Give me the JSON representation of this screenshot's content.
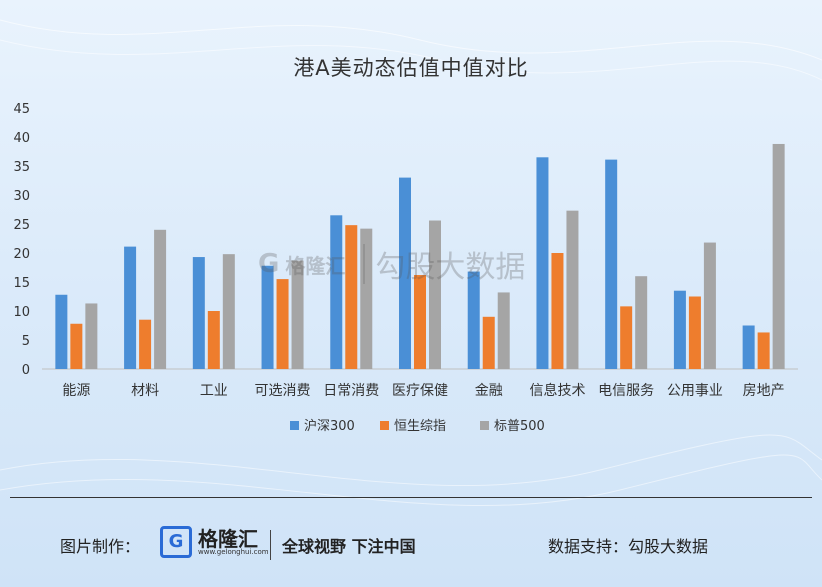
{
  "header": {
    "title": "港A美动态估值中值对比"
  },
  "watermark": {
    "brand": "格隆汇",
    "text": "勾股大数据"
  },
  "footer": {
    "made_by_label": "图片制作：",
    "brand": "格隆汇",
    "brand_sub": "www.gelonghui.com",
    "slogan": "全球视野 下注中国",
    "support_label": "数据支持：",
    "support_value": "勾股大数据"
  },
  "colors": {
    "hs300": "#4a8fd6",
    "hang_seng": "#ee7d2d",
    "sp500": "#a5a5a5"
  },
  "chart_data": {
    "type": "bar",
    "title": "港A美动态估值中值对比",
    "categories": [
      "能源",
      "材料",
      "工业",
      "可选消费",
      "日常消费",
      "医疗保健",
      "金融",
      "信息技术",
      "电信服务",
      "公用事业",
      "房地产"
    ],
    "series": [
      {
        "name": "沪深300",
        "color": "#4a8fd6",
        "values": [
          12.8,
          21.1,
          19.3,
          17.8,
          26.5,
          33.0,
          16.8,
          36.5,
          36.1,
          13.5,
          7.5
        ]
      },
      {
        "name": "恒生综指",
        "color": "#ee7d2d",
        "values": [
          7.8,
          8.5,
          10.0,
          15.5,
          24.8,
          16.2,
          9.0,
          20.0,
          10.8,
          12.5,
          6.3
        ]
      },
      {
        "name": "标普500",
        "color": "#a5a5a5",
        "values": [
          11.3,
          24.0,
          19.8,
          18.7,
          24.2,
          25.6,
          13.2,
          27.3,
          16.0,
          21.8,
          38.8
        ]
      }
    ],
    "yticks": [
      0,
      5,
      10,
      15,
      20,
      25,
      30,
      35,
      40,
      45
    ],
    "ylim": [
      0,
      45
    ],
    "legend_position": "bottom",
    "grid": false
  }
}
